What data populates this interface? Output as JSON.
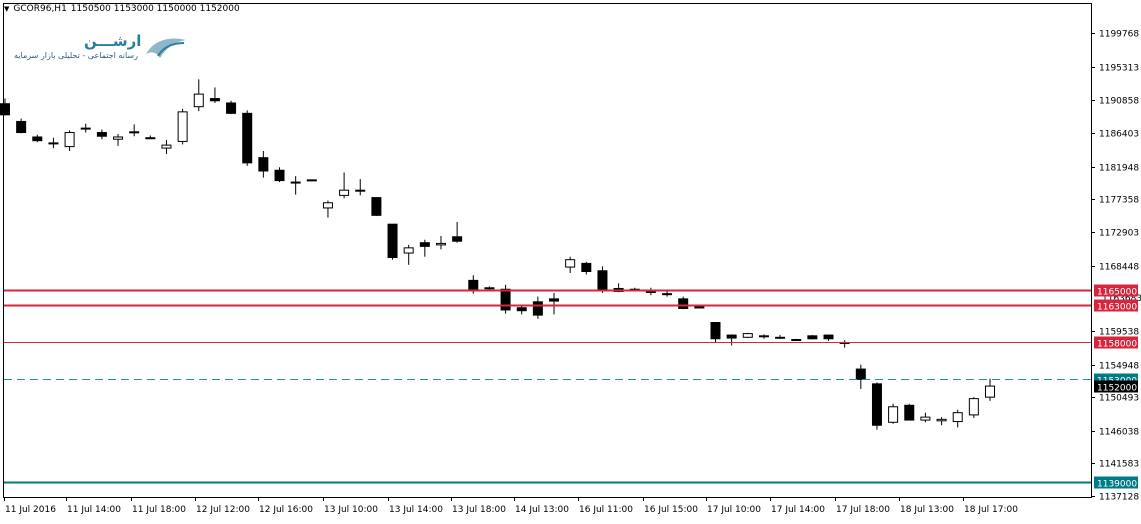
{
  "header": {
    "symbol_timeframe": "GCOR96,H1",
    "ohlc": "1150500 1153000 1150000 1152000"
  },
  "logo": {
    "title": "ارشـــن",
    "subtitle": "رسانه اجتماعی - تحلیلی بازار سرمایه"
  },
  "colors": {
    "bull_fill": "#ffffff",
    "bear_fill": "#000000",
    "wick": "#000000",
    "resistance_line": "#d6263d",
    "support_line": "#007a86",
    "current_price_dash": "#2e8b99",
    "label_red_bg": "#d6263d",
    "label_teal_bg": "#007a86",
    "axis": "#000000"
  },
  "chart_data": {
    "type": "candlestick",
    "x": [
      "11 Jul 2016",
      "11 Jul 14:00",
      "11 Jul 18:00",
      "12 Jul 12:00",
      "12 Jul 16:00",
      "13 Jul 10:00",
      "13 Jul 14:00",
      "13 Jul 18:00",
      "14 Jul 13:00",
      "16 Jul 11:00",
      "16 Jul 15:00",
      "17 Jul 10:00",
      "17 Jul 14:00",
      "17 Jul 18:00",
      "18 Jul 13:00",
      "18 Jul 17:00"
    ],
    "y_ticks": [
      1199768,
      1195313,
      1190858,
      1186403,
      1181948,
      1177358,
      1172903,
      1168448,
      1159538,
      1154948,
      1150493,
      1146038,
      1141583,
      1137128
    ],
    "ylim": [
      1137128,
      1202000
    ],
    "candles": [
      {
        "o": 1190200,
        "h": 1190900,
        "l": 1188600,
        "c": 1188700
      },
      {
        "o": 1187800,
        "h": 1188200,
        "l": 1186200,
        "c": 1186300
      },
      {
        "o": 1185700,
        "h": 1186000,
        "l": 1185000,
        "c": 1185200
      },
      {
        "o": 1184800,
        "h": 1185600,
        "l": 1184200,
        "c": 1184900
      },
      {
        "o": 1184400,
        "h": 1186600,
        "l": 1183800,
        "c": 1186300
      },
      {
        "o": 1186900,
        "h": 1187500,
        "l": 1186300,
        "c": 1186900
      },
      {
        "o": 1186300,
        "h": 1186700,
        "l": 1185400,
        "c": 1185800
      },
      {
        "o": 1185400,
        "h": 1186100,
        "l": 1184500,
        "c": 1185700
      },
      {
        "o": 1186400,
        "h": 1187400,
        "l": 1185800,
        "c": 1186400
      },
      {
        "o": 1185600,
        "h": 1185900,
        "l": 1185600,
        "c": 1185600
      },
      {
        "o": 1184200,
        "h": 1185300,
        "l": 1183400,
        "c": 1184600
      },
      {
        "o": 1185100,
        "h": 1189500,
        "l": 1184700,
        "c": 1189100
      },
      {
        "o": 1189800,
        "h": 1193500,
        "l": 1189200,
        "c": 1191500
      },
      {
        "o": 1190900,
        "h": 1192400,
        "l": 1190300,
        "c": 1190600
      },
      {
        "o": 1190300,
        "h": 1190600,
        "l": 1188800,
        "c": 1188900
      },
      {
        "o": 1188900,
        "h": 1189300,
        "l": 1181800,
        "c": 1182200
      },
      {
        "o": 1182900,
        "h": 1183800,
        "l": 1180200,
        "c": 1181100
      },
      {
        "o": 1181200,
        "h": 1181600,
        "l": 1179600,
        "c": 1179800
      },
      {
        "o": 1179600,
        "h": 1180400,
        "l": 1177900,
        "c": 1179600
      },
      {
        "o": 1179900,
        "h": 1179900,
        "l": 1179900,
        "c": 1179900
      },
      {
        "o": 1176100,
        "h": 1177100,
        "l": 1174800,
        "c": 1176800
      },
      {
        "o": 1177800,
        "h": 1180900,
        "l": 1177400,
        "c": 1178500
      },
      {
        "o": 1178400,
        "h": 1180000,
        "l": 1177800,
        "c": 1178500
      },
      {
        "o": 1177500,
        "h": 1177500,
        "l": 1175000,
        "c": 1175100
      },
      {
        "o": 1173900,
        "h": 1173900,
        "l": 1169100,
        "c": 1169400
      },
      {
        "o": 1170000,
        "h": 1171100,
        "l": 1168400,
        "c": 1170700
      },
      {
        "o": 1171400,
        "h": 1171800,
        "l": 1169500,
        "c": 1170900
      },
      {
        "o": 1171100,
        "h": 1172300,
        "l": 1170500,
        "c": 1171300
      },
      {
        "o": 1172200,
        "h": 1174200,
        "l": 1171400,
        "c": 1171600
      },
      {
        "o": 1166300,
        "h": 1167000,
        "l": 1164500,
        "c": 1164900
      },
      {
        "o": 1165300,
        "h": 1165500,
        "l": 1164900,
        "c": 1165300
      },
      {
        "o": 1165100,
        "h": 1165700,
        "l": 1161800,
        "c": 1162300
      },
      {
        "o": 1162600,
        "h": 1162800,
        "l": 1161700,
        "c": 1162200
      },
      {
        "o": 1163400,
        "h": 1164100,
        "l": 1161100,
        "c": 1161600
      },
      {
        "o": 1163800,
        "h": 1164600,
        "l": 1161700,
        "c": 1163500
      },
      {
        "o": 1168100,
        "h": 1169500,
        "l": 1167300,
        "c": 1169100
      },
      {
        "o": 1168600,
        "h": 1168800,
        "l": 1167100,
        "c": 1167500
      },
      {
        "o": 1167600,
        "h": 1168200,
        "l": 1164600,
        "c": 1165000
      },
      {
        "o": 1165200,
        "h": 1165900,
        "l": 1164700,
        "c": 1164800
      },
      {
        "o": 1165100,
        "h": 1165300,
        "l": 1164800,
        "c": 1165100
      },
      {
        "o": 1164800,
        "h": 1165300,
        "l": 1164300,
        "c": 1164800
      },
      {
        "o": 1164500,
        "h": 1164900,
        "l": 1164100,
        "c": 1164500
      },
      {
        "o": 1163800,
        "h": 1164100,
        "l": 1162400,
        "c": 1162500
      },
      {
        "o": 1162700,
        "h": 1162900,
        "l": 1162700,
        "c": 1162700
      },
      {
        "o": 1160600,
        "h": 1160600,
        "l": 1157900,
        "c": 1158400
      },
      {
        "o": 1158900,
        "h": 1159000,
        "l": 1157500,
        "c": 1158500
      },
      {
        "o": 1158600,
        "h": 1159200,
        "l": 1158500,
        "c": 1159100
      },
      {
        "o": 1158700,
        "h": 1159000,
        "l": 1158400,
        "c": 1158800
      },
      {
        "o": 1158600,
        "h": 1158900,
        "l": 1158400,
        "c": 1158600
      },
      {
        "o": 1158300,
        "h": 1158400,
        "l": 1158300,
        "c": 1158300
      },
      {
        "o": 1158800,
        "h": 1158900,
        "l": 1158300,
        "c": 1158400
      },
      {
        "o": 1158900,
        "h": 1158900,
        "l": 1158100,
        "c": 1158400
      },
      {
        "o": 1157900,
        "h": 1158200,
        "l": 1157200,
        "c": 1157900
      },
      {
        "o": 1154300,
        "h": 1154900,
        "l": 1151600,
        "c": 1152900
      },
      {
        "o": 1152300,
        "h": 1152500,
        "l": 1146100,
        "c": 1146700
      },
      {
        "o": 1147100,
        "h": 1149600,
        "l": 1146900,
        "c": 1149200
      },
      {
        "o": 1149400,
        "h": 1149600,
        "l": 1147400,
        "c": 1147400
      },
      {
        "o": 1147400,
        "h": 1148400,
        "l": 1147100,
        "c": 1147800
      },
      {
        "o": 1147300,
        "h": 1147800,
        "l": 1146700,
        "c": 1147500
      },
      {
        "o": 1147200,
        "h": 1148800,
        "l": 1146400,
        "c": 1148400
      },
      {
        "o": 1148100,
        "h": 1150500,
        "l": 1147700,
        "c": 1150300
      },
      {
        "o": 1150500,
        "h": 1153000,
        "l": 1150000,
        "c": 1152000
      }
    ],
    "levels": [
      {
        "price": "1165000",
        "value": 1165000,
        "kind": "resistance",
        "style": "solid-thick"
      },
      {
        "price": "1163000",
        "value": 1163000,
        "kind": "resistance",
        "style": "solid-thick"
      },
      {
        "price": "1158000",
        "value": 1158000,
        "kind": "resistance",
        "style": "solid-thin"
      },
      {
        "price": "1153000",
        "value": 1153000,
        "kind": "current",
        "style": "dashed"
      },
      {
        "price": "1152000",
        "value": 1152000,
        "kind": "bid",
        "style": "none"
      },
      {
        "price": "1139000",
        "value": 1139000,
        "kind": "support",
        "style": "solid-thick"
      }
    ],
    "obscured_tick": "1163683"
  }
}
